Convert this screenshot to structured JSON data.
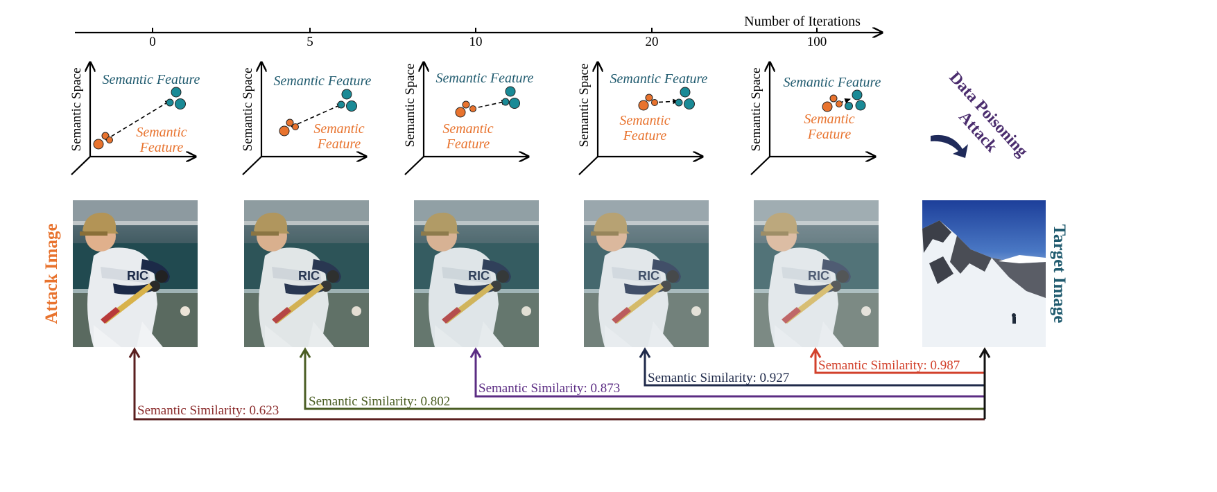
{
  "timeline": {
    "title": "Number of Iterations",
    "ticks": [
      "0",
      "5",
      "10",
      "20",
      "100"
    ]
  },
  "panel": {
    "y_axis_label": "Semantic Space",
    "target_label": "Semantic Feature",
    "attack_label_line1": "Semantic",
    "attack_label_line2": "Feature"
  },
  "labels": {
    "attack_image": "Attack Image",
    "target_image": "Target Image",
    "poison_line1": "Data Poisoning",
    "poison_line2": "Attack"
  },
  "similarities": [
    {
      "text": "Semantic Similarity: 0.623",
      "color": "#5a1f1f"
    },
    {
      "text": "Semantic Similarity: 0.802",
      "color": "#4a5d23"
    },
    {
      "text": "Semantic Similarity: 0.873",
      "color": "#5b2c83"
    },
    {
      "text": "Semantic Similarity: 0.927",
      "color": "#1f2a4a"
    },
    {
      "text": "Semantic Similarity: 0.987",
      "color": "#d2402b"
    }
  ],
  "colors": {
    "orange": "#e8732e",
    "teal": "#1a8a96",
    "teal_text": "#1f5a6e",
    "purple": "#4b2d6e"
  }
}
